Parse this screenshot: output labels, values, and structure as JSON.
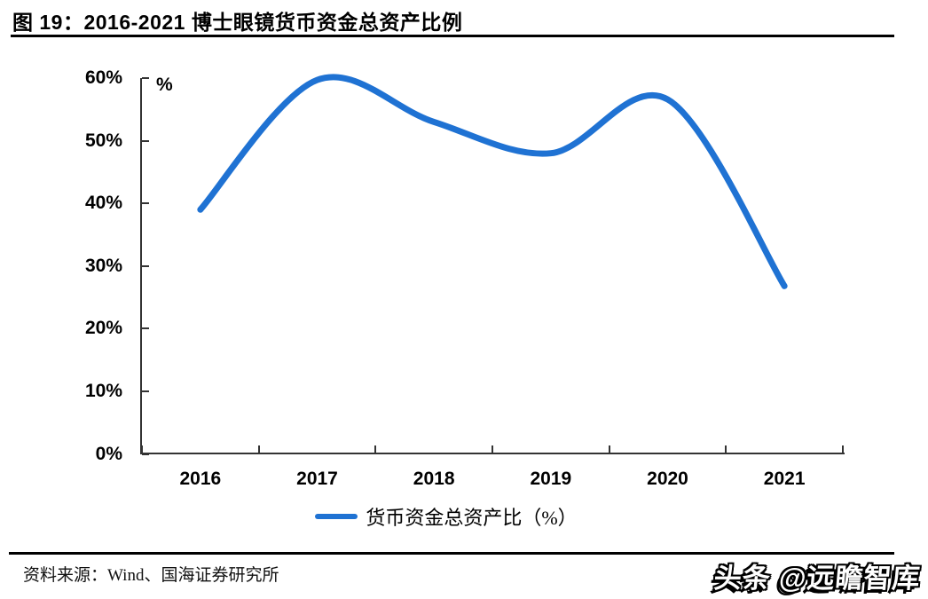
{
  "header": {
    "title": "图 19：2016-2021 博士眼镜货币资金总资产比例"
  },
  "chart_data": {
    "type": "line",
    "title": "2016-2021 博士眼镜货币资金总资产比例",
    "categories": [
      "2016",
      "2017",
      "2018",
      "2019",
      "2020",
      "2021"
    ],
    "series": [
      {
        "name": "货币资金总资产比（%）",
        "values": [
          39.0,
          59.7,
          53.0,
          48.0,
          56.6,
          26.8
        ]
      }
    ],
    "unit_label": "%",
    "yticks": [
      "60%",
      "50%",
      "40%",
      "30%",
      "20%",
      "10%",
      "0%"
    ],
    "ylim": [
      0,
      60
    ],
    "grid": false,
    "smooth": true,
    "legend_position": "bottom",
    "line_color": "#1f72d3",
    "axis_color": "#333333"
  },
  "footer": {
    "source": "资料来源：Wind、国海证券研究所",
    "watermark": "头条 @远瞻智库"
  }
}
